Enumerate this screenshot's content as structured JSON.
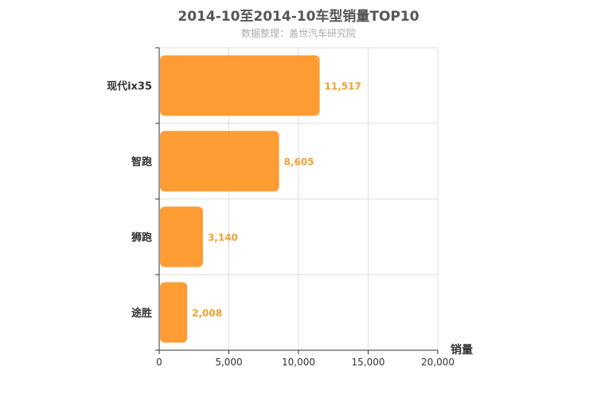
{
  "chart_data": {
    "type": "bar",
    "orientation": "horizontal",
    "title": "2014-10至2014-10车型销量TOP10",
    "subtitle": "数据整理：盖世汽车研究院",
    "categories": [
      "现代ix35",
      "智跑",
      "狮跑",
      "途胜"
    ],
    "values": [
      11517,
      8605,
      3140,
      2008
    ],
    "value_labels": [
      "11,517",
      "8,605",
      "3,140",
      "2,008"
    ],
    "xlabel": "销量",
    "ylabel": "",
    "xlim": [
      0,
      20000
    ],
    "x_ticks": [
      0,
      5000,
      10000,
      15000,
      20000
    ],
    "x_tick_labels": [
      "0",
      "5,000",
      "10,000",
      "15,000",
      "20,000"
    ],
    "grid": true,
    "legend": "none",
    "colors": {
      "bar": "#ff9c33",
      "bar_label": "#f0a030",
      "grid": "#dddddd",
      "axis": "#333333",
      "title": "#555555",
      "subtitle": "#aaaaaa",
      "text": "#333333"
    }
  }
}
